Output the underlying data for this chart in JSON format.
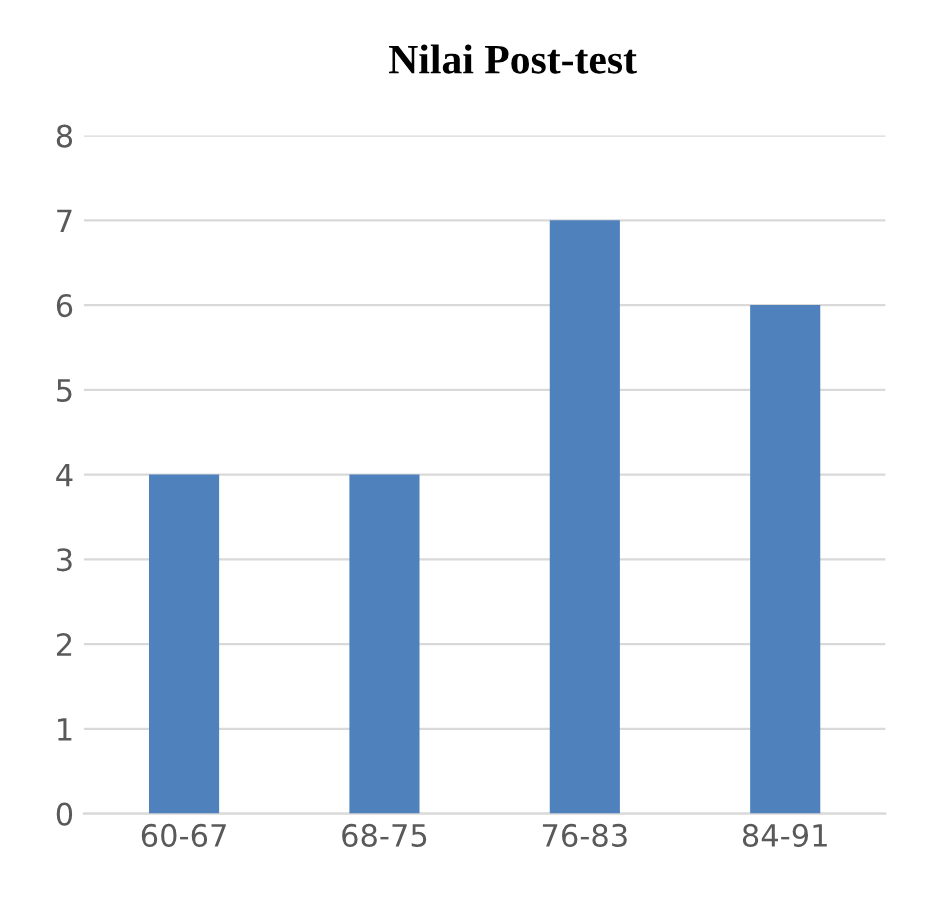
{
  "chart_data": {
    "type": "bar",
    "title": "Nilai Post-test",
    "categories": [
      "60-67",
      "68-75",
      "76-83",
      "84-91"
    ],
    "values": [
      4,
      4,
      7,
      6
    ],
    "color": "#4f81bd",
    "ylim": [
      0,
      8
    ],
    "yticks": [
      0,
      1,
      2,
      3,
      4,
      5,
      6,
      7,
      8
    ],
    "grid": "y",
    "legend": false
  }
}
